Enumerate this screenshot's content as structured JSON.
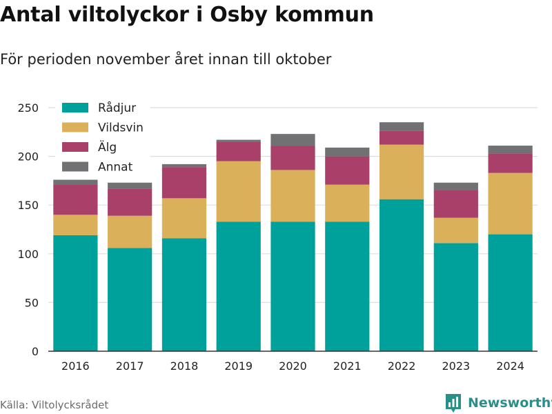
{
  "header": {
    "title": "Antal viltolyckor i Osby kommun",
    "subtitle": "För perioden november året innan till oktober"
  },
  "footer": {
    "source": "Källa: Viltolycksrådet",
    "brand": "Newsworthy",
    "brand_icon": "bar-chart-logo-icon"
  },
  "colors": {
    "Rådjur": "#00a19a",
    "Vildsvin": "#dab05a",
    "Älg": "#a84069",
    "Annat": "#717174",
    "brand": "#2a8f88"
  },
  "chart_data": {
    "type": "bar",
    "stacked": true,
    "title": "Antal viltolyckor i Osby kommun",
    "subtitle": "För perioden november året innan till oktober",
    "categories": [
      "2016",
      "2017",
      "2018",
      "2019",
      "2020",
      "2021",
      "2022",
      "2023",
      "2024"
    ],
    "series": [
      {
        "name": "Rådjur",
        "values": [
          119,
          106,
          116,
          133,
          133,
          133,
          156,
          111,
          120
        ]
      },
      {
        "name": "Vildsvin",
        "values": [
          21,
          33,
          41,
          62,
          53,
          38,
          56,
          26,
          63
        ]
      },
      {
        "name": "Älg",
        "values": [
          31,
          28,
          32,
          20,
          25,
          29,
          14,
          28,
          20
        ]
      },
      {
        "name": "Annat",
        "values": [
          5,
          6,
          3,
          2,
          12,
          9,
          9,
          8,
          8
        ]
      }
    ],
    "ylim": [
      0,
      250
    ],
    "yticks": [
      0,
      50,
      100,
      150,
      200,
      250
    ],
    "xlabel": "",
    "ylabel": "",
    "grid": true,
    "legend_position": "top-left"
  }
}
